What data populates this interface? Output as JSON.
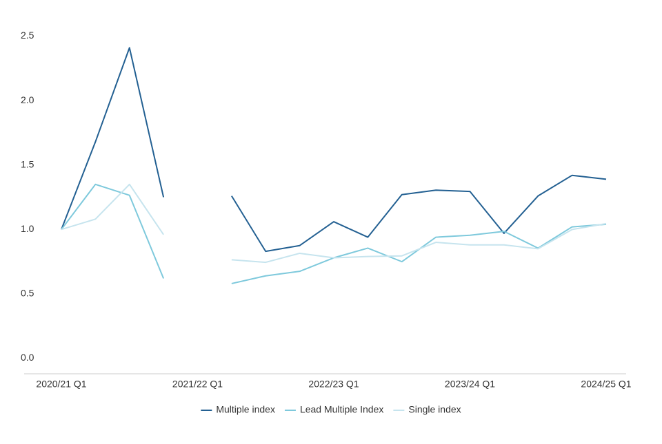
{
  "chart_data": {
    "type": "line",
    "categories": [
      "2020/21 Q1",
      null,
      null,
      null,
      "2021/22 Q1",
      null,
      null,
      null,
      "2022/23 Q1",
      null,
      null,
      null,
      "2023/24 Q1",
      null,
      null,
      null,
      "2024/25 Q1"
    ],
    "series": [
      {
        "name": "Multiple index",
        "color": "#236092",
        "values": [
          1.0,
          1.68,
          2.41,
          1.25,
          null,
          1.26,
          0.83,
          0.875,
          1.06,
          0.94,
          1.27,
          1.305,
          1.295,
          0.97,
          1.26,
          1.42,
          1.39
        ]
      },
      {
        "name": "Lead Multiple Index",
        "color": "#7ec9dc",
        "values": [
          1.0,
          1.35,
          1.265,
          0.62,
          null,
          0.58,
          0.64,
          0.675,
          0.78,
          0.855,
          0.75,
          0.94,
          0.955,
          0.985,
          0.855,
          1.02,
          1.04
        ]
      },
      {
        "name": "Single index",
        "color": "#c6e4ee",
        "values": [
          1.0,
          1.08,
          1.35,
          0.96,
          null,
          0.765,
          0.745,
          0.815,
          0.78,
          0.79,
          0.795,
          0.9,
          0.88,
          0.88,
          0.85,
          1.0,
          1.045
        ]
      }
    ],
    "ylim": [
      -0.12,
      2.6
    ],
    "yticks": [
      {
        "value": 0,
        "label": "0.0"
      },
      0.5,
      {
        "value": 1,
        "label": "1.0"
      },
      1.5,
      {
        "value": 2,
        "label": "2.0"
      },
      2.5
    ],
    "grid": false,
    "legend": "bottom"
  }
}
